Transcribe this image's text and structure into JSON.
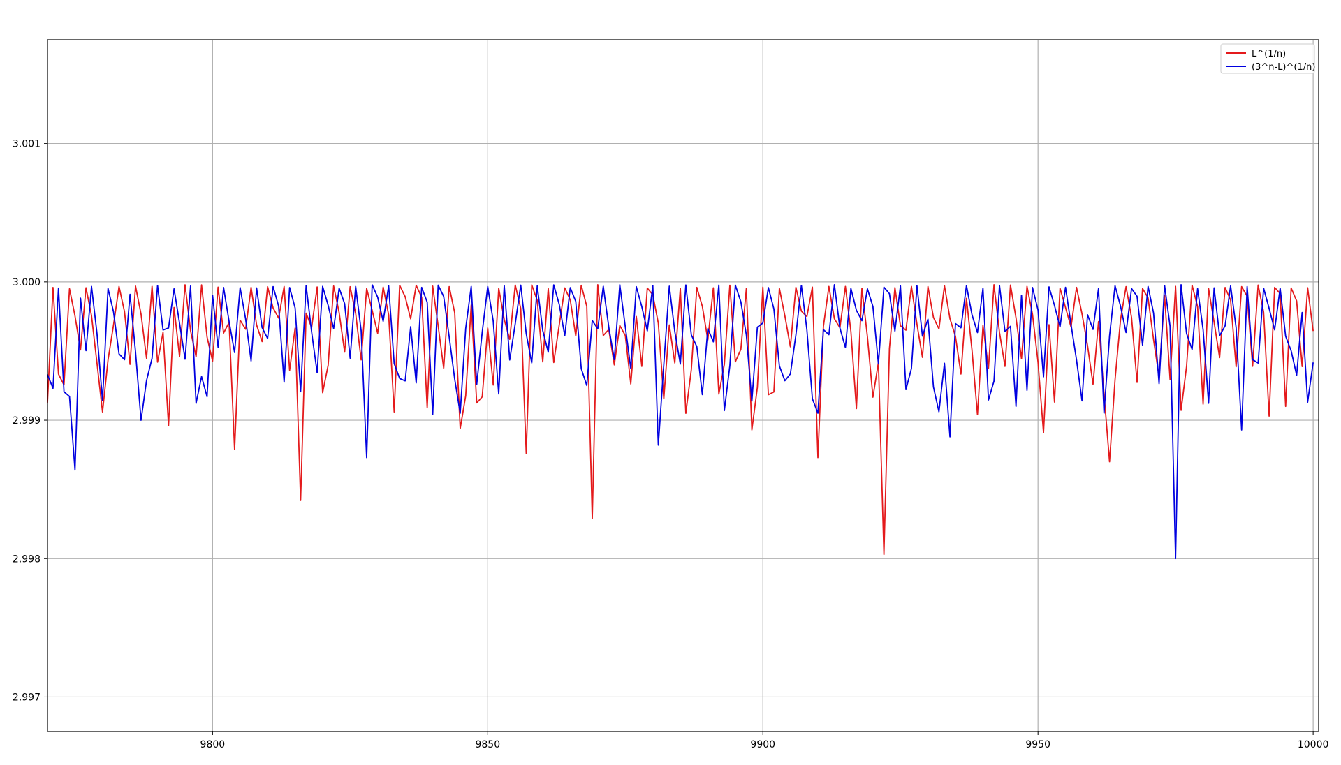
{
  "chart_data": {
    "type": "line",
    "title": "",
    "xlabel": "",
    "ylabel": "",
    "xlim": [
      9770,
      10001
    ],
    "ylim": [
      2.99675,
      3.00175
    ],
    "grid": true,
    "legend_position": "top-right",
    "x_ticks": [
      9800,
      9850,
      9900,
      9950,
      10000
    ],
    "x_tick_labels": [
      "9800",
      "9850",
      "9900",
      "9950",
      "10000"
    ],
    "y_ticks": [
      2.997,
      2.998,
      2.999,
      3.0,
      3.001
    ],
    "y_tick_labels": [
      "2.997",
      "2.998",
      "2.999",
      "3.000",
      "3.001"
    ],
    "x_start": 9770,
    "x_end": 10000,
    "series": [
      {
        "name": "L^(1/n)",
        "color": "#e41a1c",
        "dips": [
          {
            "x": 9780,
            "y": 2.99906
          },
          {
            "x": 9792,
            "y": 2.99896
          },
          {
            "x": 9804,
            "y": 2.99879
          },
          {
            "x": 9816,
            "y": 2.99842
          },
          {
            "x": 9833,
            "y": 2.99906
          },
          {
            "x": 9845,
            "y": 2.99894
          },
          {
            "x": 9857,
            "y": 2.99876
          },
          {
            "x": 9869,
            "y": 2.99829
          },
          {
            "x": 9886,
            "y": 2.99905
          },
          {
            "x": 9898,
            "y": 2.99893
          },
          {
            "x": 9910,
            "y": 2.99873
          },
          {
            "x": 9922,
            "y": 2.99803
          },
          {
            "x": 9939,
            "y": 2.99904
          },
          {
            "x": 9951,
            "y": 2.99891
          },
          {
            "x": 9963,
            "y": 2.9987
          },
          {
            "x": 9992,
            "y": 2.99903
          }
        ]
      },
      {
        "name": "(3^n-L)^(1/n)",
        "color": "#0000e0",
        "dips": [
          {
            "x": 9770,
            "y": 2.99933
          },
          {
            "x": 9775,
            "y": 2.99864
          },
          {
            "x": 9787,
            "y": 2.999
          },
          {
            "x": 9799,
            "y": 2.99917
          },
          {
            "x": 9828,
            "y": 2.99873
          },
          {
            "x": 9840,
            "y": 2.99904
          },
          {
            "x": 9852,
            "y": 2.99919
          },
          {
            "x": 9881,
            "y": 2.99882
          },
          {
            "x": 9893,
            "y": 2.99907
          },
          {
            "x": 9934,
            "y": 2.99888
          },
          {
            "x": 9946,
            "y": 2.9991
          },
          {
            "x": 9975,
            "y": 2.998
          },
          {
            "x": 9987,
            "y": 2.99893
          },
          {
            "x": 9999,
            "y": 2.99913
          }
        ]
      }
    ]
  }
}
